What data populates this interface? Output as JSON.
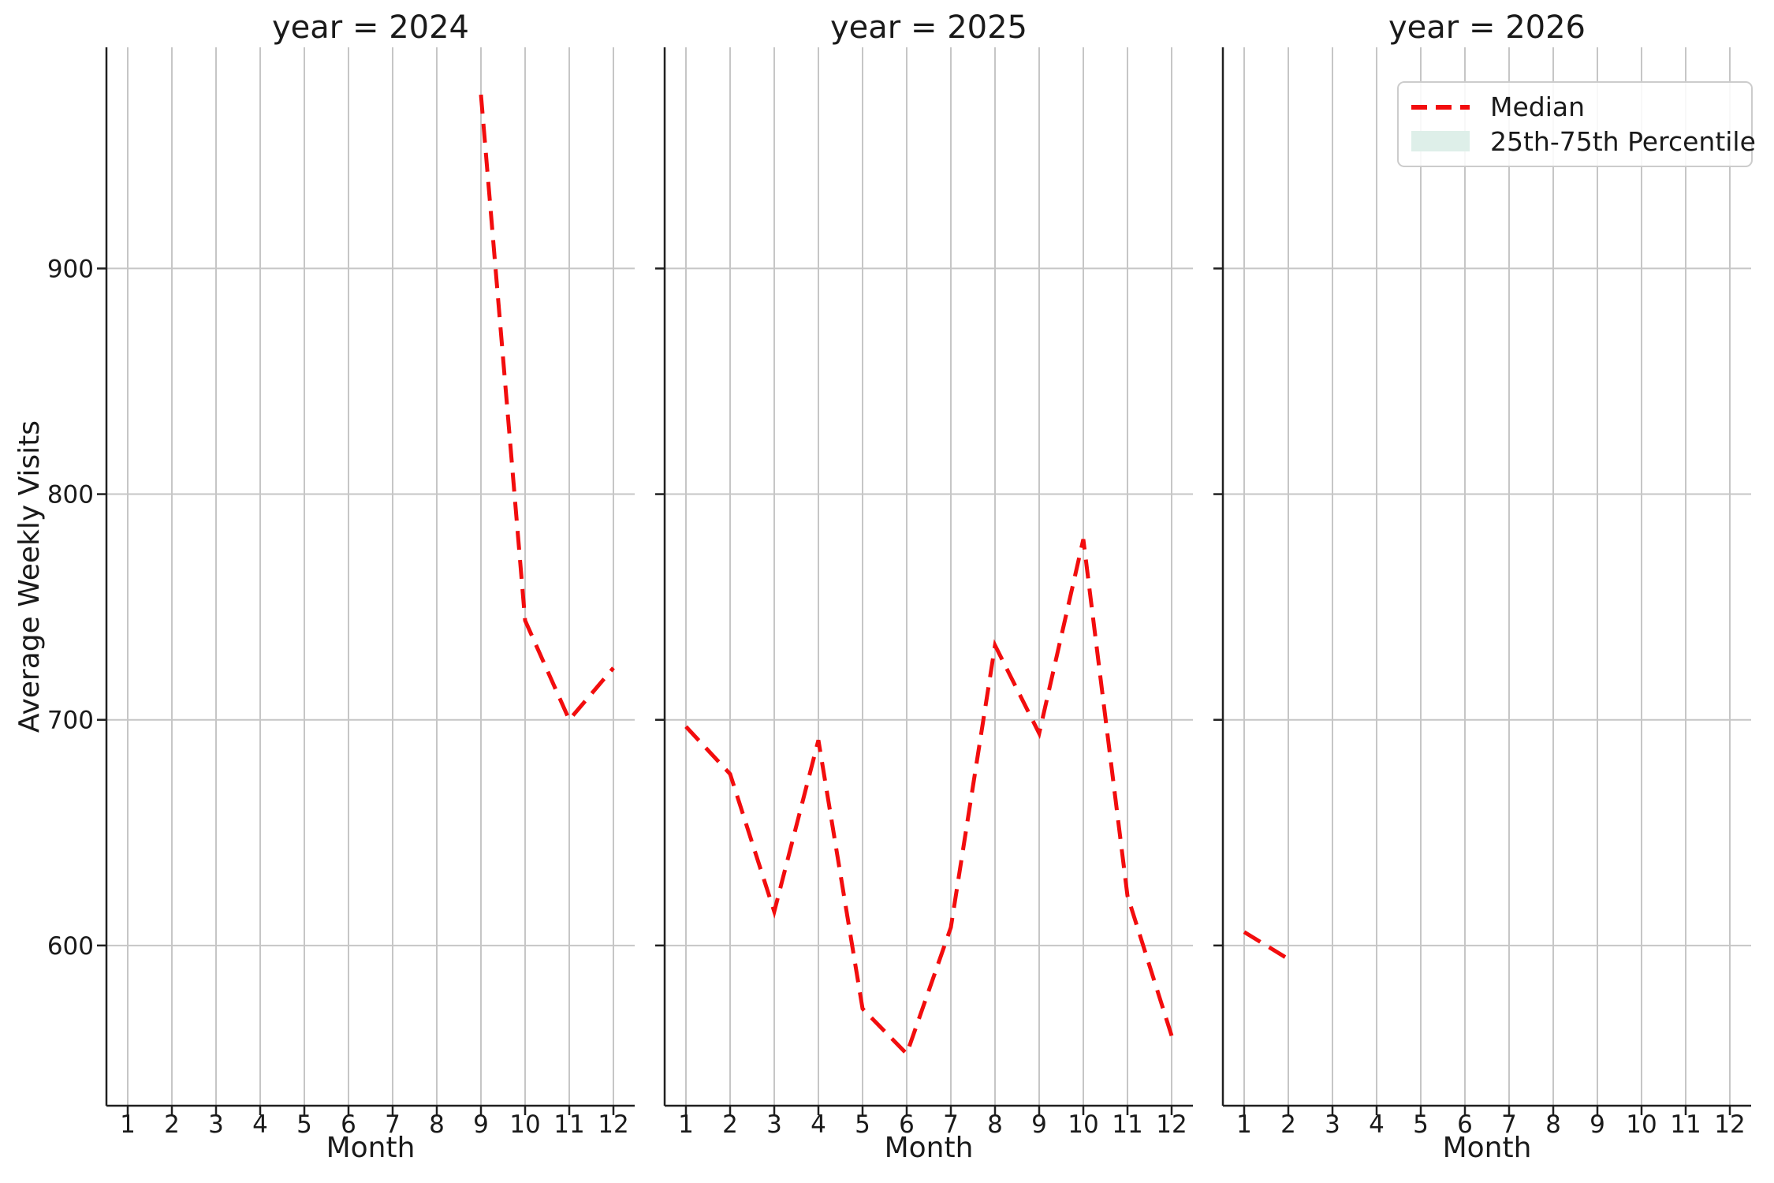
{
  "chart_data": {
    "type": "line",
    "ylabel": "Average Weekly Visits",
    "xlabel": "Month",
    "x_ticks": [
      1,
      2,
      3,
      4,
      5,
      6,
      7,
      8,
      9,
      10,
      11,
      12
    ],
    "y_ticks": [
      600,
      700,
      800,
      900
    ],
    "ylim": [
      529,
      998
    ],
    "xlim": [
      0.52,
      12.48
    ],
    "grid": true,
    "facets": [
      {
        "title": "year = 2024",
        "series": [
          {
            "name": "Median",
            "x": [
              9,
              10,
              11,
              12
            ],
            "y": [
              977,
              744,
              700,
              723
            ]
          }
        ]
      },
      {
        "title": "year = 2025",
        "series": [
          {
            "name": "Median",
            "x": [
              1,
              2,
              3,
              4,
              5,
              6,
              7,
              8,
              9,
              10,
              11,
              12
            ],
            "y": [
              697,
              676,
              615,
              691,
              572,
              552,
              608,
              733,
              694,
              780,
              622,
              560
            ]
          }
        ]
      },
      {
        "title": "year = 2026",
        "series": [
          {
            "name": "Median",
            "x": [
              1,
              2
            ],
            "y": [
              606,
              594
            ]
          }
        ]
      }
    ],
    "line_style": {
      "color": "#f20d0e",
      "dash": [
        24,
        13
      ],
      "width": 5
    },
    "band_style": {
      "color": "#deefe9"
    },
    "legend": {
      "position": "upper right",
      "entries": [
        {
          "label": "Median",
          "marker": "dashed-line",
          "color": "#f20d0e"
        },
        {
          "label": "25th-75th Percentile",
          "marker": "filled-patch",
          "color": "#deefe9"
        }
      ]
    },
    "colors": {
      "grid": "#c6c6c6",
      "spine": "#202020",
      "text": "#1a1a1a"
    }
  }
}
